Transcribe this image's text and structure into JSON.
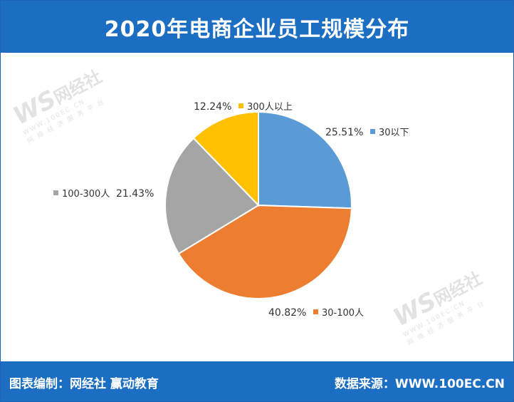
{
  "header": {
    "title": "2020年电商企业员工规模分布"
  },
  "footer": {
    "left": "图表编制：网经社  赢动教育",
    "right": "数据来源：WWW.100EC.CN"
  },
  "watermark": {
    "logo": "WS",
    "name": "网经社",
    "url": "WWW.100EC.CN",
    "tagline": "网 络 经 济 服 务 平 台"
  },
  "chart_data": {
    "type": "pie",
    "title": "2020年电商企业员工规模分布",
    "slices": [
      {
        "label": "30以下",
        "value": 25.51,
        "display": "25.51%",
        "color": "#5b9bd5"
      },
      {
        "label": "30-100人",
        "value": 40.82,
        "display": "40.82%",
        "color": "#ed7d31"
      },
      {
        "label": "100-300人",
        "value": 21.43,
        "display": "21.43%",
        "color": "#a5a5a5"
      },
      {
        "label": "300人以上",
        "value": 12.24,
        "display": "12.24%",
        "color": "#ffc000"
      }
    ]
  }
}
